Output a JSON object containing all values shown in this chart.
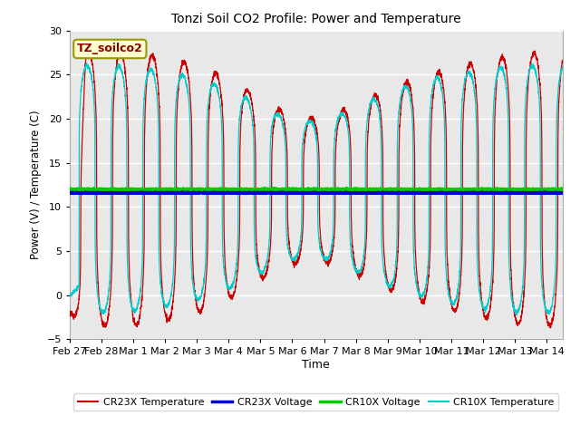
{
  "title": "Tonzi Soil CO2 Profile: Power and Temperature",
  "xlabel": "Time",
  "ylabel": "Power (V) / Temperature (C)",
  "ylim": [
    -5,
    30
  ],
  "yticks": [
    -5,
    0,
    5,
    10,
    15,
    20,
    25,
    30
  ],
  "figure_bg": "#ffffff",
  "plot_bg": "#e8e8e8",
  "cr23x_voltage_value": 11.6,
  "cr10x_voltage_value": 12.0,
  "annotation_text": "TZ_soilco2",
  "annotation_bg": "#ffffcc",
  "annotation_border": "#999900",
  "legend_entries": [
    "CR23X Temperature",
    "CR23X Voltage",
    "CR10X Voltage",
    "CR10X Temperature"
  ],
  "legend_colors": [
    "#cc0000",
    "#0000cc",
    "#00cc00",
    "#00cccc"
  ],
  "line_colors": {
    "cr23x_temp": "#cc0000",
    "cr23x_volt": "#0000cc",
    "cr10x_volt": "#00cc00",
    "cr10x_temp": "#00cccc"
  },
  "x_tick_labels": [
    "Feb 27",
    "Feb 28",
    "Mar 1",
    "Mar 2",
    "Mar 3",
    "Mar 4",
    "Mar 5",
    "Mar 6",
    "Mar 7",
    "Mar 8",
    "Mar 9",
    "Mar 10",
    "Mar 11",
    "Mar 12",
    "Mar 13",
    "Mar 14"
  ]
}
